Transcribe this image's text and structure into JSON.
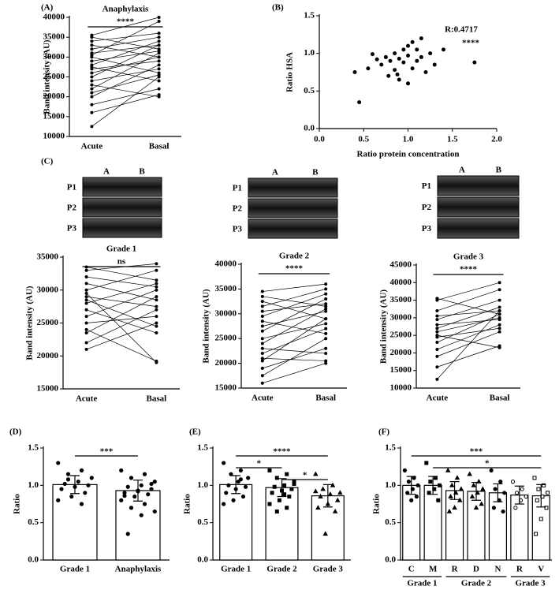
{
  "chart_data": [
    {
      "type": "paired",
      "label": "(A)",
      "title": "Anaphylaxis",
      "ylabel": "Band intensity (AU)",
      "categories": [
        "Acute",
        "Basal"
      ],
      "significance": "****",
      "ylim": [
        10000,
        40000
      ],
      "yticks": [
        10000,
        15000,
        20000,
        25000,
        30000,
        35000,
        40000
      ],
      "color": "#000000",
      "pairs": [
        [
          12500,
          25000
        ],
        [
          16000,
          20500
        ],
        [
          18000,
          22000
        ],
        [
          20000,
          28000
        ],
        [
          22000,
          31000
        ],
        [
          24000,
          27000
        ],
        [
          25000,
          33000
        ],
        [
          26000,
          30000
        ],
        [
          27000,
          29000
        ],
        [
          28000,
          34000
        ],
        [
          29000,
          31500
        ],
        [
          30000,
          26000
        ],
        [
          31000,
          33000
        ],
        [
          32000,
          35000
        ],
        [
          33000,
          30000
        ],
        [
          34000,
          36000
        ],
        [
          35000,
          32000
        ],
        [
          35500,
          40000
        ],
        [
          23000,
          20000
        ],
        [
          27500,
          24000
        ],
        [
          21000,
          25500
        ],
        [
          30500,
          39000
        ]
      ]
    },
    {
      "type": "scatter",
      "label": "(B)",
      "xlabel": "Ratio protein concentration",
      "ylabel": "Ratio HSA",
      "annotations": [
        "R:0.4717",
        "****"
      ],
      "color": "#000000",
      "xlim": [
        0,
        2
      ],
      "xticks": [
        {
          "value": 0,
          "label": "0.0"
        },
        0.5,
        {
          "value": 1,
          "label": "1.0"
        },
        1.5,
        {
          "value": 2,
          "label": "2.0"
        }
      ],
      "ylim": [
        0,
        1.5
      ],
      "yticks": [
        {
          "value": 0,
          "label": "0.0"
        },
        0.5,
        {
          "value": 1,
          "label": "1.0"
        },
        1.5
      ],
      "x": [
        0.45,
        0.4,
        0.55,
        0.6,
        0.65,
        0.7,
        0.75,
        0.78,
        0.8,
        0.85,
        0.85,
        0.9,
        0.9,
        0.95,
        0.95,
        1.0,
        1.0,
        1.0,
        1.05,
        1.05,
        1.1,
        1.1,
        1.15,
        1.15,
        1.2,
        1.25,
        1.3,
        1.4,
        1.75,
        0.88
      ],
      "values": [
        0.35,
        0.75,
        0.8,
        0.99,
        0.92,
        0.85,
        0.95,
        0.7,
        0.9,
        0.78,
        1.0,
        0.93,
        0.65,
        0.88,
        1.05,
        0.6,
        0.97,
        1.1,
        0.8,
        1.15,
        0.9,
        1.05,
        0.95,
        1.2,
        0.75,
        1.0,
        0.85,
        1.05,
        0.88,
        0.72
      ]
    },
    {
      "type": "paired",
      "label": "(C)",
      "title": "Grade 1",
      "ylabel": "Band intensity (AU)",
      "categories": [
        "Acute",
        "Basal"
      ],
      "significance": "ns",
      "blot": {
        "columns": [
          "A",
          "B"
        ],
        "rows": [
          "P1",
          "P2",
          "P3"
        ]
      },
      "ylim": [
        15000,
        35000
      ],
      "yticks": [
        15000,
        20000,
        25000,
        30000,
        35000
      ],
      "color": "#000000",
      "pairs": [
        [
          21000,
          25000
        ],
        [
          22000,
          27000
        ],
        [
          23500,
          29000
        ],
        [
          25000,
          26000
        ],
        [
          26000,
          30000
        ],
        [
          27000,
          23500
        ],
        [
          28000,
          31000
        ],
        [
          29000,
          27500
        ],
        [
          29500,
          19000
        ],
        [
          30000,
          33000
        ],
        [
          31000,
          28500
        ],
        [
          32000,
          30500
        ],
        [
          33000,
          34000
        ],
        [
          33500,
          31500
        ],
        [
          24000,
          19200
        ],
        [
          28500,
          24500
        ]
      ]
    },
    {
      "type": "paired",
      "title": "Grade 2",
      "ylabel": "Band intensity (AU)",
      "categories": [
        "Acute",
        "Basal"
      ],
      "significance": "****",
      "blot": {
        "columns": [
          "A",
          "B"
        ],
        "rows": [
          "P1",
          "P2",
          "P3"
        ]
      },
      "ylim": [
        15000,
        40000
      ],
      "yticks": [
        15000,
        20000,
        25000,
        30000,
        35000,
        40000
      ],
      "color": "#000000",
      "pairs": [
        [
          16000,
          20000
        ],
        [
          17500,
          25000
        ],
        [
          19000,
          23000
        ],
        [
          20500,
          29000
        ],
        [
          22000,
          27000
        ],
        [
          24000,
          31000
        ],
        [
          25000,
          28000
        ],
        [
          26500,
          33000
        ],
        [
          27500,
          30500
        ],
        [
          28500,
          26000
        ],
        [
          29500,
          34000
        ],
        [
          30500,
          32000
        ],
        [
          31500,
          35000
        ],
        [
          32500,
          29000
        ],
        [
          33500,
          31500
        ],
        [
          34500,
          36000
        ],
        [
          23000,
          22000
        ],
        [
          21000,
          20500
        ]
      ]
    },
    {
      "type": "paired",
      "title": "Grade 3",
      "ylabel": "Band intensity (AU)",
      "categories": [
        "Acute",
        "Basal"
      ],
      "significance": "****",
      "blot": {
        "columns": [
          "A",
          "B"
        ],
        "rows": [
          "P1",
          "P2",
          "P3"
        ]
      },
      "ylim": [
        10000,
        45000
      ],
      "yticks": [
        10000,
        15000,
        20000,
        25000,
        30000,
        35000,
        40000,
        45000
      ],
      "color": "#000000",
      "pairs": [
        [
          12500,
          32000
        ],
        [
          16000,
          22000
        ],
        [
          19000,
          26000
        ],
        [
          21000,
          28000
        ],
        [
          23000,
          31000
        ],
        [
          24500,
          27000
        ],
        [
          26000,
          30000
        ],
        [
          27000,
          33000
        ],
        [
          28000,
          29500
        ],
        [
          29500,
          35000
        ],
        [
          30500,
          32000
        ],
        [
          32000,
          38000
        ],
        [
          35000,
          40000
        ],
        [
          35500,
          31000
        ],
        [
          25000,
          21500
        ]
      ]
    },
    {
      "type": "bar",
      "label": "(D)",
      "ylabel": "Ratio",
      "categories": [
        "Grade 1",
        "Anaphylaxis"
      ],
      "values": [
        1.01,
        0.93
      ],
      "errors": [
        0.12,
        0.14
      ],
      "markers": [
        "circle",
        "circle"
      ],
      "color": "#000000",
      "ylim": [
        0,
        1.5
      ],
      "yticks": [
        {
          "value": 0,
          "label": "0.0"
        },
        0.5,
        {
          "value": 1,
          "label": "1.0"
        },
        1.5
      ],
      "brackets": [
        {
          "from": 0,
          "to": 1,
          "label": "***"
        }
      ],
      "points": [
        [
          1.3,
          1.2,
          1.15,
          1.1,
          1.05,
          1.02,
          1.0,
          0.98,
          0.95,
          0.9,
          0.85,
          0.8,
          0.75,
          1.08
        ],
        [
          1.2,
          1.15,
          1.1,
          1.05,
          1.0,
          0.98,
          0.95,
          0.93,
          0.9,
          0.88,
          0.85,
          0.8,
          0.75,
          0.7,
          0.65,
          0.6,
          0.35,
          1.02,
          0.92,
          0.86
        ]
      ]
    },
    {
      "type": "bar",
      "label": "(E)",
      "ylabel": "Ratio",
      "categories": [
        "Grade 1",
        "Grade 2",
        "Grade 3"
      ],
      "values": [
        1.01,
        0.97,
        0.86
      ],
      "errors": [
        0.12,
        0.12,
        0.15
      ],
      "markers": [
        "circle",
        "square",
        "triangle"
      ],
      "color": "#000000",
      "ylim": [
        0,
        1.5
      ],
      "yticks": [
        {
          "value": 0,
          "label": "0.0"
        },
        0.5,
        {
          "value": 1,
          "label": "1.0"
        },
        1.5
      ],
      "brackets": [
        {
          "from": 0,
          "to": 2,
          "label": "****"
        },
        {
          "from": 0,
          "to": 1,
          "label": "*"
        },
        {
          "from": 1,
          "to": 2,
          "label": "*"
        }
      ],
      "points": [
        [
          1.3,
          1.2,
          1.15,
          1.1,
          1.05,
          1.0,
          0.98,
          0.95,
          0.9,
          0.85,
          0.8,
          0.75,
          1.08
        ],
        [
          1.2,
          1.15,
          1.1,
          1.05,
          1.0,
          0.98,
          0.95,
          0.93,
          0.9,
          0.85,
          0.8,
          0.75,
          0.7,
          0.65,
          1.02,
          0.88
        ],
        [
          1.15,
          1.0,
          0.95,
          0.9,
          0.88,
          0.85,
          0.8,
          0.75,
          0.7,
          0.65,
          0.35,
          0.92
        ]
      ]
    },
    {
      "type": "bar",
      "label": "(F)",
      "ylabel": "Ratio",
      "categories": [
        "C",
        "M",
        "R",
        "D",
        "N",
        "R",
        "V"
      ],
      "values": [
        1.0,
        1.0,
        0.93,
        0.92,
        0.9,
        0.87,
        0.86
      ],
      "errors": [
        0.12,
        0.12,
        0.12,
        0.12,
        0.12,
        0.12,
        0.15
      ],
      "markers": [
        "circle",
        "square",
        "triangle",
        "triangle",
        "circle",
        "circle-open",
        "square-open"
      ],
      "color": "#000000",
      "groups": [
        {
          "label": "Grade 1",
          "from": 0,
          "to": 1
        },
        {
          "label": "Grade 2",
          "from": 2,
          "to": 4
        },
        {
          "label": "Grade 3",
          "from": 5,
          "to": 6
        }
      ],
      "ylim": [
        0,
        1.5
      ],
      "yticks": [
        {
          "value": 0,
          "label": "0.0"
        },
        0.5,
        {
          "value": 1,
          "label": "1.0"
        },
        1.5
      ],
      "brackets": [
        {
          "from": 0,
          "to": 6,
          "label": "***"
        },
        {
          "from": 1,
          "to": 6,
          "label": "*"
        }
      ],
      "points": [
        [
          1.2,
          1.1,
          1.05,
          1.0,
          0.95,
          0.9,
          0.85,
          0.8
        ],
        [
          1.3,
          1.1,
          1.05,
          1.0,
          0.95,
          0.9,
          0.8
        ],
        [
          1.2,
          1.1,
          1.0,
          0.95,
          0.9,
          0.85,
          0.8,
          0.7,
          0.65
        ],
        [
          1.15,
          1.05,
          1.0,
          0.95,
          0.9,
          0.85,
          0.75,
          0.7
        ],
        [
          1.2,
          1.05,
          0.95,
          0.9,
          0.8,
          0.7,
          0.65
        ],
        [
          1.05,
          0.95,
          0.9,
          0.85,
          0.8,
          0.7
        ],
        [
          1.1,
          1.0,
          0.95,
          0.9,
          0.85,
          0.8,
          0.7,
          0.55,
          0.35
        ]
      ]
    }
  ]
}
